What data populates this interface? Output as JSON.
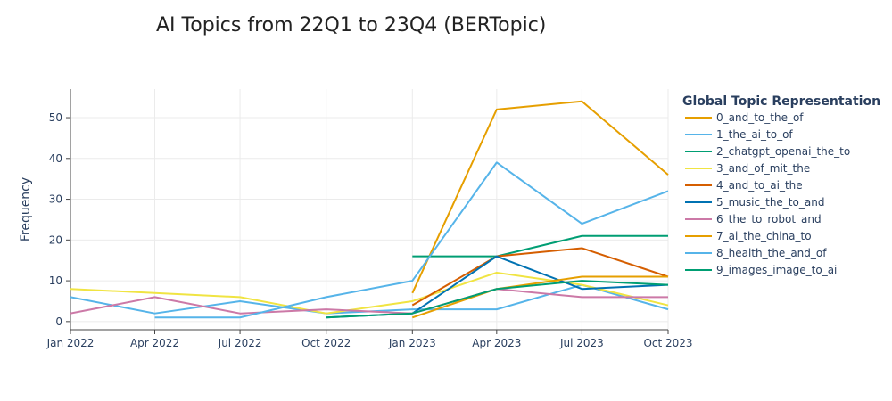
{
  "chart_data": {
    "type": "line",
    "title": "AI Topics from 22Q1 to 23Q4 (BERTopic)",
    "xlabel": "",
    "ylabel": "Frequency",
    "legend_title": "Global Topic Representation",
    "legend_position": "right",
    "grid": true,
    "x": [
      "2022-01-01",
      "2022-04-01",
      "2022-07-01",
      "2022-10-01",
      "2023-01-01",
      "2023-04-01",
      "2023-07-01",
      "2023-10-01"
    ],
    "x_tick_labels": [
      "Jan 2022",
      "Apr 2022",
      "Jul 2022",
      "Oct 2022",
      "Jan 2023",
      "Apr 2023",
      "Jul 2023",
      "Oct 2023"
    ],
    "y_ticks": [
      0,
      10,
      20,
      30,
      40,
      50
    ],
    "ylim": [
      -2,
      57
    ],
    "series": [
      {
        "name": "0_and_to_the_of",
        "color": "#E69F00",
        "values": [
          null,
          null,
          null,
          null,
          7,
          52,
          54,
          36
        ]
      },
      {
        "name": "1_the_ai_to_of",
        "color": "#56B4E9",
        "values": [
          6,
          2,
          5,
          2,
          3,
          3,
          9,
          3
        ]
      },
      {
        "name": "2_chatgpt_openai_the_to",
        "color": "#009E73",
        "values": [
          null,
          null,
          null,
          null,
          16,
          16,
          21,
          21
        ]
      },
      {
        "name": "3_and_of_mit_the",
        "color": "#F0E442",
        "values": [
          8,
          7,
          6,
          2,
          5,
          12,
          9,
          4
        ]
      },
      {
        "name": "4_and_to_ai_the",
        "color": "#D55E00",
        "values": [
          null,
          null,
          null,
          null,
          4,
          16,
          18,
          11
        ]
      },
      {
        "name": "5_music_the_to_and",
        "color": "#0072B2",
        "values": [
          null,
          null,
          null,
          1,
          2,
          16,
          8,
          9
        ]
      },
      {
        "name": "6_the_to_robot_and",
        "color": "#CC79A7",
        "values": [
          2,
          6,
          2,
          3,
          2,
          8,
          6,
          6
        ]
      },
      {
        "name": "7_ai_the_china_to",
        "color": "#E69F00",
        "values": [
          null,
          null,
          null,
          null,
          1,
          8,
          11,
          11
        ]
      },
      {
        "name": "8_health_the_and_of",
        "color": "#56B4E9",
        "values": [
          null,
          1,
          1,
          6,
          10,
          39,
          24,
          32
        ]
      },
      {
        "name": "9_images_image_to_ai",
        "color": "#009E73",
        "values": [
          null,
          null,
          null,
          1,
          2,
          8,
          10,
          9
        ]
      }
    ]
  }
}
